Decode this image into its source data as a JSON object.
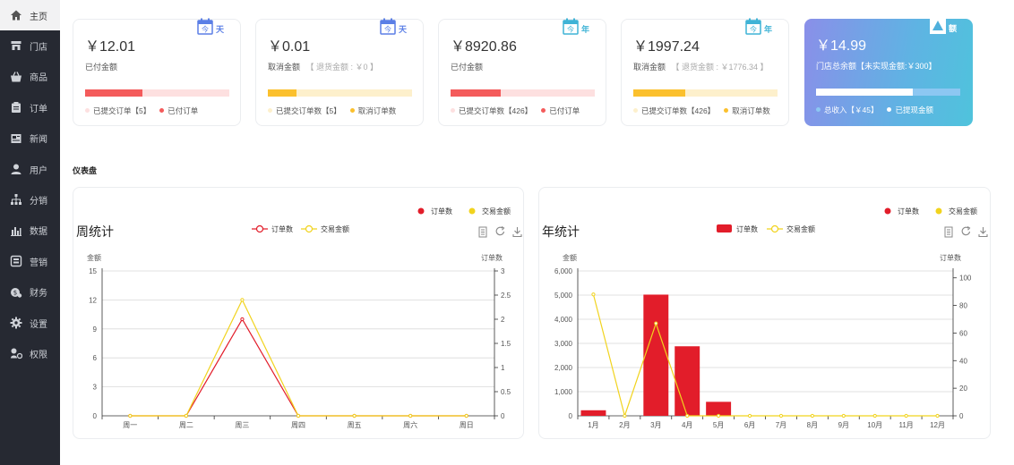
{
  "sidebar": {
    "items": [
      {
        "label": "主页",
        "icon": "home-icon",
        "active": true
      },
      {
        "label": "门店",
        "icon": "store-icon"
      },
      {
        "label": "商品",
        "icon": "basket-icon"
      },
      {
        "label": "订单",
        "icon": "clipboard-icon"
      },
      {
        "label": "新闻",
        "icon": "news-icon"
      },
      {
        "label": "用户",
        "icon": "user-icon"
      },
      {
        "label": "分销",
        "icon": "sitemap-icon"
      },
      {
        "label": "数据",
        "icon": "bar-chart-icon"
      },
      {
        "label": "营销",
        "icon": "marketing-icon"
      },
      {
        "label": "财务",
        "icon": "finance-icon"
      },
      {
        "label": "设置",
        "icon": "gear-icon"
      },
      {
        "label": "权限",
        "icon": "permission-icon"
      }
    ]
  },
  "cards": [
    {
      "amount": "￥12.01",
      "caption": "已付金额",
      "caption_extra": "",
      "badge": "天",
      "badge_color": "#5b7fe6",
      "bar_fill": 0.4,
      "bar_color": "#f45b5b",
      "bar_bg": "#fde0e0",
      "legend": [
        {
          "label": "已提交订单【5】",
          "color": "#fde0e0"
        },
        {
          "label": "已付订单",
          "color": "#f45b5b"
        }
      ]
    },
    {
      "amount": "￥0.01",
      "caption": "取消金额",
      "caption_extra": "【 退货金额 : ￥0 】",
      "badge": "天",
      "badge_color": "#5b7fe6",
      "bar_fill": 0.2,
      "bar_color": "#fbc02d",
      "bar_bg": "#fdf0cc",
      "legend": [
        {
          "label": "已提交订单数【5】",
          "color": "#fdf0cc"
        },
        {
          "label": "取消订单数",
          "color": "#fbc02d"
        }
      ]
    },
    {
      "amount": "￥8920.86",
      "caption": "已付金额",
      "caption_extra": "",
      "badge": "年",
      "badge_color": "#3fb3d6",
      "bar_fill": 0.35,
      "bar_color": "#f45b5b",
      "bar_bg": "#fde0e0",
      "legend": [
        {
          "label": "已提交订单数【426】",
          "color": "#fde0e0"
        },
        {
          "label": "已付订单",
          "color": "#f45b5b"
        }
      ]
    },
    {
      "amount": "￥1997.24",
      "caption": "取消金额",
      "caption_extra": "【 退货金额 : ￥1776.34 】",
      "badge": "年",
      "badge_color": "#3fb3d6",
      "bar_fill": 0.36,
      "bar_color": "#fbc02d",
      "bar_bg": "#fdf0cc",
      "legend": [
        {
          "label": "已提交订单数【426】",
          "color": "#fdf0cc"
        },
        {
          "label": "取消订单数",
          "color": "#fbc02d"
        }
      ]
    },
    {
      "amount": "￥14.99",
      "caption": "门店总余额【未实现金额:￥300】",
      "caption_extra": "",
      "badge": "额",
      "badge_color": "#ffffff",
      "bar_fill": 0.67,
      "bar_color": "#ffffff",
      "bar_bg": "#8cc7f2",
      "legend": [
        {
          "label": "总收入【￥45】",
          "color": "#8cc7f2"
        },
        {
          "label": "已提现金额",
          "color": "#ffffff"
        }
      ],
      "gradient": true
    }
  ],
  "section_title": "仪表盘",
  "chart_data": [
    {
      "type": "line",
      "title": "周统计",
      "legend_top": [
        {
          "label": "订单数",
          "color": "#e21d2a"
        },
        {
          "label": "交易金额",
          "color": "#f1d31e"
        }
      ],
      "legend_inline": [
        {
          "label": "订单数",
          "color": "#e21d2a"
        },
        {
          "label": "交易金额",
          "color": "#f1d31e"
        }
      ],
      "categories": [
        "周一",
        "周二",
        "周三",
        "周四",
        "周五",
        "周六",
        "周日"
      ],
      "y_left_label": "金额",
      "y_right_label": "订单数",
      "y_left_ticks": [
        "0",
        "3",
        "6",
        "9",
        "12",
        "15"
      ],
      "y_left_lim": [
        0,
        15
      ],
      "y_right_ticks": [
        "0",
        "0.5",
        "1",
        "1.5",
        "2",
        "2.5",
        "3"
      ],
      "y_right_lim": [
        0,
        3
      ],
      "series": [
        {
          "name": "订单数",
          "axis": "right",
          "color": "#e21d2a",
          "values": [
            0,
            0,
            2,
            0,
            0,
            0,
            0
          ]
        },
        {
          "name": "交易金额",
          "axis": "left",
          "color": "#f1d31e",
          "values": [
            0,
            0,
            12,
            0,
            0,
            0,
            0
          ]
        }
      ],
      "toolbar": [
        "data-view-icon",
        "refresh-icon",
        "download-icon"
      ]
    },
    {
      "type": "bar",
      "title": "年统计",
      "legend_top": [
        {
          "label": "订单数",
          "color": "#e21d2a"
        },
        {
          "label": "交易金额",
          "color": "#f1d31e"
        }
      ],
      "legend_inline": [
        {
          "label": "订单数",
          "color": "#e21d2a"
        },
        {
          "label": "交易金额",
          "color": "#f1d31e"
        }
      ],
      "categories": [
        "1月",
        "2月",
        "3月",
        "4月",
        "5月",
        "6月",
        "7月",
        "8月",
        "9月",
        "10月",
        "11月",
        "12月"
      ],
      "y_left_label": "金额",
      "y_right_label": "订单数",
      "y_left_ticks": [
        "0",
        "1,000",
        "2,000",
        "3,000",
        "4,000",
        "5,000",
        "6,000"
      ],
      "y_left_lim": [
        0,
        6000
      ],
      "y_right_ticks": [
        "0",
        "20",
        "40",
        "60",
        "80",
        "100"
      ],
      "y_right_lim": [
        0,
        105
      ],
      "series": [
        {
          "name": "订单数",
          "type": "bar",
          "axis": "left",
          "color": "#e21d2a",
          "values": [
            230,
            0,
            5020,
            2880,
            580,
            0,
            0,
            0,
            0,
            0,
            0,
            0
          ]
        },
        {
          "name": "交易金额",
          "type": "line",
          "axis": "right",
          "color": "#f1d31e",
          "values": [
            88,
            0,
            67,
            0,
            0,
            0,
            0,
            0,
            0,
            0,
            0,
            0
          ]
        }
      ],
      "toolbar": [
        "data-view-icon",
        "refresh-icon",
        "download-icon"
      ]
    }
  ]
}
